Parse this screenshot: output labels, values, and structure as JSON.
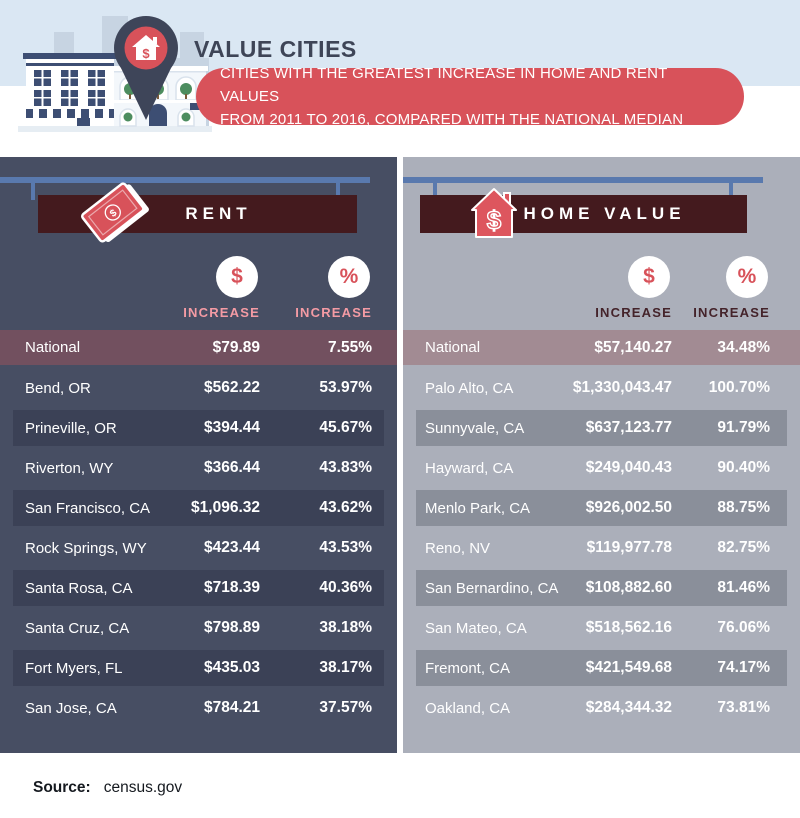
{
  "header": {
    "title": "VALUE CITIES",
    "subtitle_line1": "CITIES WITH THE GREATEST INCREASE IN HOME AND RENT VALUES",
    "subtitle_line2": "FROM 2011 TO 2016, COMPARED WITH THE NATIONAL MEDIAN"
  },
  "panels": [
    {
      "title": "RENT",
      "icon": "money-bill-icon",
      "columns": [
        {
          "symbol": "$",
          "label": "INCREASE"
        },
        {
          "symbol": "%",
          "label": "INCREASE"
        }
      ],
      "rows": [
        {
          "city": "National",
          "amount": "$79.89",
          "percent": "7.55%",
          "highlight": true
        },
        {
          "city": "Bend, OR",
          "amount": "$562.22",
          "percent": "53.97%"
        },
        {
          "city": "Prineville, OR",
          "amount": "$394.44",
          "percent": "45.67%"
        },
        {
          "city": "Riverton, WY",
          "amount": "$366.44",
          "percent": "43.83%"
        },
        {
          "city": "San Francisco, CA",
          "amount": "$1,096.32",
          "percent": "43.62%"
        },
        {
          "city": "Rock Springs, WY",
          "amount": "$423.44",
          "percent": "43.53%"
        },
        {
          "city": "Santa Rosa, CA",
          "amount": "$718.39",
          "percent": "40.36%"
        },
        {
          "city": "Santa Cruz, CA",
          "amount": "$798.89",
          "percent": "38.18%"
        },
        {
          "city": "Fort Myers, FL",
          "amount": "$435.03",
          "percent": "38.17%"
        },
        {
          "city": "San Jose, CA",
          "amount": "$784.21",
          "percent": "37.57%"
        }
      ]
    },
    {
      "title": "HOME VALUE",
      "icon": "house-dollar-icon",
      "columns": [
        {
          "symbol": "$",
          "label": "INCREASE"
        },
        {
          "symbol": "%",
          "label": "INCREASE"
        }
      ],
      "rows": [
        {
          "city": "National",
          "amount": "$57,140.27",
          "percent": "34.48%",
          "highlight": true
        },
        {
          "city": "Palo Alto, CA",
          "amount": "$1,330,043.47",
          "percent": "100.70%"
        },
        {
          "city": "Sunnyvale, CA",
          "amount": "$637,123.77",
          "percent": "91.79%"
        },
        {
          "city": "Hayward, CA",
          "amount": "$249,040.43",
          "percent": "90.40%"
        },
        {
          "city": "Menlo Park, CA",
          "amount": "$926,002.50",
          "percent": "88.75%"
        },
        {
          "city": "Reno, NV",
          "amount": "$119,977.78",
          "percent": "82.75%"
        },
        {
          "city": "San Bernardino, CA",
          "amount": "$108,882.60",
          "percent": "81.46%"
        },
        {
          "city": "San Mateo, CA",
          "amount": "$518,562.16",
          "percent": "76.06%"
        },
        {
          "city": "Fremont, CA",
          "amount": "$421,549.68",
          "percent": "74.17%"
        },
        {
          "city": "Oakland, CA",
          "amount": "$284,344.32",
          "percent": "73.81%"
        }
      ]
    }
  ],
  "footer": {
    "source_label": "Source:",
    "source_value": "census.gov"
  },
  "colors": {
    "accent_red": "#d8525a",
    "banner_maroon": "#441a1e",
    "panel_dark": "#474e63",
    "panel_light": "#abafba",
    "national_row_dark": "#72505f",
    "national_row_light": "#a28b93",
    "rod_blue": "#5979ae",
    "sky_blue": "#dae7f3",
    "increase_label_pink": "#f49ba4",
    "increase_label_maroon": "#44232a",
    "pin_navy": "#3e4559"
  },
  "chart_data": [
    {
      "type": "table",
      "title": "RENT",
      "columns": [
        "City",
        "$ Increase",
        "% Increase"
      ],
      "rows": [
        [
          "National",
          79.89,
          7.55
        ],
        [
          "Bend, OR",
          562.22,
          53.97
        ],
        [
          "Prineville, OR",
          394.44,
          45.67
        ],
        [
          "Riverton, WY",
          366.44,
          43.83
        ],
        [
          "San Francisco, CA",
          1096.32,
          43.62
        ],
        [
          "Rock Springs, WY",
          423.44,
          43.53
        ],
        [
          "Santa Rosa, CA",
          718.39,
          40.36
        ],
        [
          "Santa Cruz, CA",
          798.89,
          38.18
        ],
        [
          "Fort Myers, FL",
          435.03,
          38.17
        ],
        [
          "San Jose, CA",
          784.21,
          37.57
        ]
      ]
    },
    {
      "type": "table",
      "title": "HOME VALUE",
      "columns": [
        "City",
        "$ Increase",
        "% Increase"
      ],
      "rows": [
        [
          "National",
          57140.27,
          34.48
        ],
        [
          "Palo Alto, CA",
          1330043.47,
          100.7
        ],
        [
          "Sunnyvale, CA",
          637123.77,
          91.79
        ],
        [
          "Hayward, CA",
          249040.43,
          90.4
        ],
        [
          "Menlo Park, CA",
          926002.5,
          88.75
        ],
        [
          "Reno, NV",
          119977.78,
          82.75
        ],
        [
          "San Bernardino, CA",
          108882.6,
          81.46
        ],
        [
          "San Mateo, CA",
          518562.16,
          76.06
        ],
        [
          "Fremont, CA",
          421549.68,
          74.17
        ],
        [
          "Oakland, CA",
          284344.32,
          73.81
        ]
      ]
    }
  ]
}
